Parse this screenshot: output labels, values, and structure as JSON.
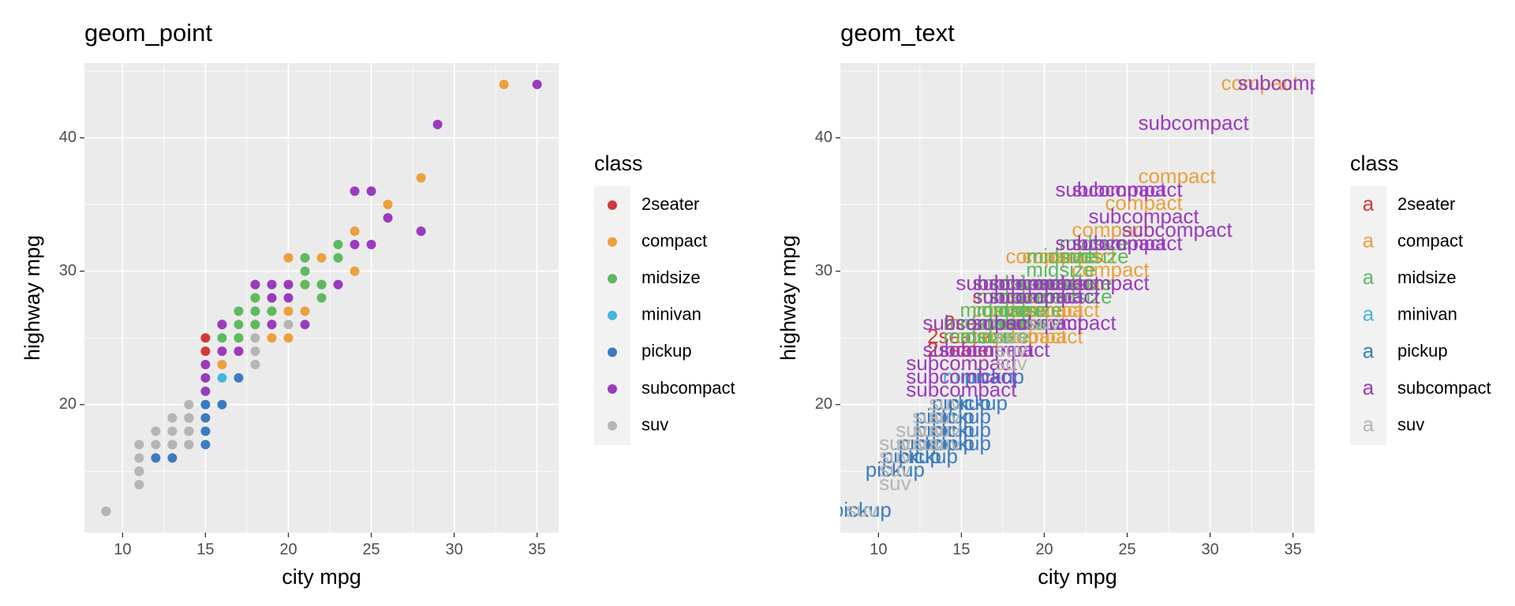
{
  "chart_data": [
    {
      "type": "scatter",
      "title": "geom_point",
      "x_label": "city mpg",
      "y_label": "highway mpg",
      "xlim": [
        7.7,
        36.3
      ],
      "ylim": [
        10.4,
        45.6
      ],
      "xticks": [
        10,
        15,
        20,
        25,
        30,
        35
      ],
      "yticks": [
        20,
        30,
        40
      ],
      "minor_xticks": [
        12.5,
        17.5,
        22.5,
        27.5,
        32.5
      ],
      "minor_yticks": [
        15,
        25,
        35,
        45
      ],
      "grid": true,
      "legend": {
        "title": "class",
        "position": "right"
      },
      "series": [
        {
          "name": "2seater",
          "color": "#d13a3a",
          "x": [
            15,
            15,
            16
          ],
          "values": [
            25,
            24,
            26
          ]
        },
        {
          "name": "compact",
          "color": "#eba03c",
          "x": [
            33,
            28,
            26,
            24,
            20,
            21,
            22,
            24,
            18,
            19,
            20,
            21,
            19,
            20,
            18,
            17,
            16,
            17,
            20,
            21,
            22,
            18
          ],
          "values": [
            44,
            37,
            35,
            33,
            31,
            31,
            31,
            30,
            27,
            27,
            27,
            27,
            25,
            25,
            26,
            25,
            23,
            24,
            29,
            29,
            29,
            28
          ]
        },
        {
          "name": "midsize",
          "color": "#5fb960",
          "x": [
            18,
            19,
            18,
            19,
            18,
            19,
            17,
            16,
            17,
            18,
            19,
            21,
            22,
            21,
            22,
            23,
            23,
            16,
            17,
            21
          ],
          "values": [
            29,
            29,
            28,
            28,
            27,
            27,
            27,
            26,
            26,
            26,
            26,
            30,
            29,
            29,
            28,
            32,
            31,
            25,
            25,
            31
          ]
        },
        {
          "name": "minivan",
          "color": "#45b5dc",
          "x": [
            16
          ],
          "values": [
            22
          ]
        },
        {
          "name": "pickup",
          "color": "#3b7cc0",
          "x": [
            15,
            15,
            15,
            15,
            14,
            14,
            14,
            13,
            13,
            12,
            16,
            17,
            9,
            11
          ],
          "values": [
            20,
            19,
            18,
            17,
            19,
            18,
            17,
            17,
            16,
            16,
            20,
            22,
            12,
            15
          ]
        },
        {
          "name": "subcompact",
          "color": "#9a3bbd",
          "x": [
            35,
            29,
            28,
            26,
            24,
            25,
            24,
            25,
            23,
            21,
            20,
            20,
            19,
            19,
            18,
            16,
            15,
            15,
            15,
            17,
            19,
            16
          ],
          "values": [
            44,
            41,
            33,
            34,
            36,
            36,
            32,
            32,
            29,
            26,
            28,
            29,
            29,
            26,
            29,
            24,
            23,
            22,
            21,
            24,
            28,
            26
          ]
        },
        {
          "name": "suv",
          "color": "#b5b5b5",
          "x": [
            9,
            11,
            11,
            11,
            11,
            12,
            12,
            13,
            13,
            13,
            14,
            14,
            14,
            18,
            18,
            18,
            20,
            14
          ],
          "values": [
            12,
            17,
            16,
            15,
            14,
            17,
            18,
            17,
            18,
            19,
            19,
            20,
            17,
            25,
            24,
            23,
            26,
            18
          ]
        }
      ]
    },
    {
      "type": "text",
      "title": "geom_text",
      "x_label": "city mpg",
      "y_label": "highway mpg",
      "xlim": [
        7.7,
        36.3
      ],
      "ylim": [
        10.4,
        45.6
      ],
      "xticks": [
        10,
        15,
        20,
        25,
        30,
        35
      ],
      "yticks": [
        20,
        30,
        40
      ],
      "minor_xticks": [
        12.5,
        17.5,
        22.5,
        27.5,
        32.5
      ],
      "minor_yticks": [
        15,
        25,
        35,
        45
      ],
      "grid": true,
      "legend": {
        "title": "class",
        "position": "right"
      },
      "legend_key_label": "a",
      "series": [
        {
          "name": "2seater",
          "color": "#d13a3a",
          "x": [
            15,
            15,
            16
          ],
          "values": [
            25,
            24,
            26
          ]
        },
        {
          "name": "compact",
          "color": "#eba03c",
          "x": [
            33,
            28,
            26,
            24,
            20,
            21,
            22,
            24,
            18,
            19,
            20,
            21,
            19,
            20,
            18,
            17,
            16,
            17,
            20,
            21,
            22,
            18
          ],
          "values": [
            44,
            37,
            35,
            33,
            31,
            31,
            31,
            30,
            27,
            27,
            27,
            27,
            25,
            25,
            26,
            25,
            23,
            24,
            29,
            29,
            29,
            28
          ]
        },
        {
          "name": "midsize",
          "color": "#5fb960",
          "x": [
            18,
            19,
            18,
            19,
            18,
            19,
            17,
            16,
            17,
            18,
            19,
            21,
            22,
            21,
            22,
            23,
            23,
            16,
            17,
            21
          ],
          "values": [
            29,
            29,
            28,
            28,
            27,
            27,
            27,
            26,
            26,
            26,
            26,
            30,
            29,
            29,
            28,
            32,
            31,
            25,
            25,
            31
          ]
        },
        {
          "name": "minivan",
          "color": "#45b5dc",
          "x": [
            16
          ],
          "values": [
            22
          ]
        },
        {
          "name": "pickup",
          "color": "#3b7cc0",
          "x": [
            15,
            15,
            15,
            15,
            14,
            14,
            14,
            13,
            13,
            12,
            16,
            17,
            9,
            11
          ],
          "values": [
            20,
            19,
            18,
            17,
            19,
            18,
            17,
            17,
            16,
            16,
            20,
            22,
            12,
            15
          ]
        },
        {
          "name": "subcompact",
          "color": "#9a3bbd",
          "x": [
            35,
            29,
            28,
            26,
            24,
            25,
            24,
            25,
            23,
            21,
            20,
            20,
            19,
            19,
            18,
            16,
            15,
            15,
            15,
            17,
            19,
            16
          ],
          "values": [
            44,
            41,
            33,
            34,
            36,
            36,
            32,
            32,
            29,
            26,
            28,
            29,
            29,
            26,
            29,
            24,
            23,
            22,
            21,
            24,
            28,
            26
          ]
        },
        {
          "name": "suv",
          "color": "#b5b5b5",
          "x": [
            9,
            11,
            11,
            11,
            11,
            12,
            12,
            13,
            13,
            13,
            14,
            14,
            14,
            18,
            18,
            18,
            20,
            14
          ],
          "values": [
            12,
            17,
            16,
            15,
            14,
            17,
            18,
            17,
            18,
            19,
            19,
            20,
            17,
            25,
            24,
            23,
            26,
            18
          ]
        }
      ]
    }
  ]
}
